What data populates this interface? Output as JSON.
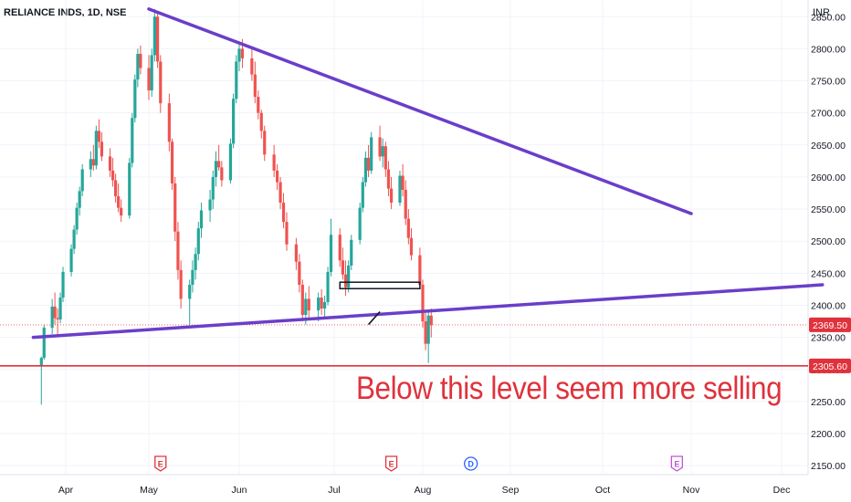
{
  "chart_data": {
    "type": "candlestick",
    "title": "RELIANCE INDS, 1D, NSE",
    "currency": "INR",
    "y_ticks": [
      2850,
      2800,
      2750,
      2700,
      2650,
      2600,
      2550,
      2500,
      2450,
      2400,
      2350,
      2300,
      2250,
      2200,
      2150
    ],
    "ylim": [
      2136,
      2876
    ],
    "x_ticks": [
      "Apr",
      "May",
      "Jun",
      "Jul",
      "Aug",
      "Sep",
      "Oct",
      "Nov",
      "Dec"
    ],
    "price_labels": [
      {
        "value": 2369.5,
        "text": "2369.50"
      },
      {
        "value": 2305.6,
        "text": "2305.60"
      }
    ],
    "annotation": "Below this level seem more selling",
    "trendlines": [
      {
        "from": [
          "2023-05-01",
          2862
        ],
        "to": [
          "2023-11-01",
          2543
        ],
        "color": "#6a3ec9"
      },
      {
        "from": [
          "2023-03-20",
          2350
        ],
        "to": [
          "2023-12-15",
          2432
        ],
        "color": "#6a3ec9"
      }
    ],
    "horizontal_line": {
      "value": 2305.6,
      "color": "#e0323c"
    },
    "event_markers": [
      {
        "date": "2023-05-05",
        "letter": "E",
        "kind": "earnings"
      },
      {
        "date": "2023-07-21",
        "letter": "E",
        "kind": "earnings"
      },
      {
        "date": "2023-08-18",
        "letter": "D",
        "kind": "dividend"
      },
      {
        "date": "2023-10-27",
        "letter": "E",
        "kind": "earnings"
      }
    ],
    "colors": {
      "up": "#26a69a",
      "down": "#ef5350",
      "trend": "#6a3ec9",
      "level": "#e0323c",
      "grid": "#f0f3fa"
    },
    "candles": [
      [
        2305,
        2320,
        2245,
        2318
      ],
      [
        2318,
        2370,
        2315,
        2365
      ],
      [
        2365,
        2410,
        2355,
        2398
      ],
      [
        2398,
        2420,
        2370,
        2380
      ],
      [
        2380,
        2395,
        2355,
        2378
      ],
      [
        2378,
        2420,
        2372,
        2412
      ],
      [
        2412,
        2460,
        2405,
        2452
      ],
      [
        2452,
        2495,
        2445,
        2488
      ],
      [
        2488,
        2525,
        2480,
        2518
      ],
      [
        2518,
        2560,
        2510,
        2552
      ],
      [
        2552,
        2585,
        2540,
        2578
      ],
      [
        2578,
        2620,
        2570,
        2612
      ],
      [
        2612,
        2640,
        2600,
        2628
      ],
      [
        2628,
        2650,
        2610,
        2618
      ],
      [
        2618,
        2680,
        2612,
        2672
      ],
      [
        2672,
        2690,
        2645,
        2655
      ],
      [
        2655,
        2670,
        2625,
        2632
      ],
      [
        2632,
        2645,
        2600,
        2610
      ],
      [
        2610,
        2630,
        2585,
        2595
      ],
      [
        2595,
        2605,
        2560,
        2570
      ],
      [
        2570,
        2590,
        2545,
        2552
      ],
      [
        2552,
        2565,
        2530,
        2540
      ],
      [
        2540,
        2630,
        2535,
        2622
      ],
      [
        2622,
        2700,
        2615,
        2692
      ],
      [
        2692,
        2760,
        2685,
        2752
      ],
      [
        2752,
        2800,
        2740,
        2792
      ],
      [
        2792,
        2805,
        2760,
        2770
      ],
      [
        2770,
        2790,
        2720,
        2735
      ],
      [
        2735,
        2800,
        2725,
        2790
      ],
      [
        2790,
        2862,
        2780,
        2850
      ],
      [
        2850,
        2858,
        2770,
        2780
      ],
      [
        2780,
        2790,
        2700,
        2715
      ],
      [
        2715,
        2730,
        2640,
        2655
      ],
      [
        2655,
        2660,
        2580,
        2590
      ],
      [
        2590,
        2600,
        2500,
        2515
      ],
      [
        2515,
        2530,
        2440,
        2455
      ],
      [
        2455,
        2470,
        2395,
        2410
      ],
      [
        2410,
        2440,
        2370,
        2432
      ],
      [
        2432,
        2470,
        2420,
        2455
      ],
      [
        2455,
        2490,
        2440,
        2480
      ],
      [
        2480,
        2530,
        2470,
        2520
      ],
      [
        2520,
        2560,
        2505,
        2548
      ],
      [
        2548,
        2580,
        2530,
        2565
      ],
      [
        2565,
        2610,
        2550,
        2600
      ],
      [
        2600,
        2640,
        2585,
        2625
      ],
      [
        2625,
        2650,
        2610,
        2615
      ],
      [
        2615,
        2625,
        2585,
        2595
      ],
      [
        2595,
        2660,
        2590,
        2652
      ],
      [
        2652,
        2730,
        2645,
        2722
      ],
      [
        2722,
        2790,
        2715,
        2780
      ],
      [
        2780,
        2812,
        2765,
        2800
      ],
      [
        2800,
        2815,
        2770,
        2785
      ],
      [
        2785,
        2800,
        2750,
        2760
      ],
      [
        2760,
        2780,
        2715,
        2725
      ],
      [
        2725,
        2735,
        2690,
        2700
      ],
      [
        2700,
        2705,
        2660,
        2672
      ],
      [
        2672,
        2680,
        2625,
        2635
      ],
      [
        2635,
        2650,
        2600,
        2610
      ],
      [
        2610,
        2620,
        2580,
        2592
      ],
      [
        2592,
        2600,
        2550,
        2560
      ],
      [
        2560,
        2575,
        2520,
        2530
      ],
      [
        2530,
        2545,
        2485,
        2495
      ],
      [
        2495,
        2505,
        2455,
        2468
      ],
      [
        2468,
        2480,
        2420,
        2432
      ],
      [
        2432,
        2440,
        2375,
        2385
      ],
      [
        2385,
        2420,
        2370,
        2410
      ],
      [
        2410,
        2430,
        2380,
        2392
      ],
      [
        2392,
        2420,
        2375,
        2412
      ],
      [
        2412,
        2425,
        2385,
        2395
      ],
      [
        2395,
        2415,
        2378,
        2405
      ],
      [
        2405,
        2460,
        2400,
        2452
      ],
      [
        2452,
        2535,
        2445,
        2510
      ],
      [
        2510,
        2520,
        2460,
        2470
      ],
      [
        2470,
        2490,
        2440,
        2448
      ],
      [
        2448,
        2470,
        2415,
        2428
      ],
      [
        2428,
        2470,
        2420,
        2462
      ],
      [
        2462,
        2510,
        2455,
        2502
      ],
      [
        2502,
        2560,
        2495,
        2552
      ],
      [
        2552,
        2600,
        2545,
        2592
      ],
      [
        2592,
        2640,
        2585,
        2630
      ],
      [
        2630,
        2650,
        2600,
        2610
      ],
      [
        2610,
        2670,
        2605,
        2662
      ],
      [
        2662,
        2680,
        2625,
        2632
      ],
      [
        2632,
        2660,
        2615,
        2648
      ],
      [
        2648,
        2655,
        2600,
        2612
      ],
      [
        2612,
        2625,
        2570,
        2582
      ],
      [
        2582,
        2600,
        2550,
        2560
      ],
      [
        2560,
        2610,
        2555,
        2602
      ],
      [
        2602,
        2620,
        2570,
        2580
      ],
      [
        2580,
        2595,
        2525,
        2535
      ],
      [
        2535,
        2550,
        2495,
        2505
      ],
      [
        2505,
        2520,
        2470,
        2478
      ],
      [
        2478,
        2490,
        2425,
        2432
      ],
      [
        2432,
        2440,
        2365,
        2375
      ],
      [
        2375,
        2390,
        2330,
        2340
      ],
      [
        2340,
        2390,
        2310,
        2384
      ],
      [
        2384,
        2395,
        2350,
        2369
      ]
    ]
  }
}
